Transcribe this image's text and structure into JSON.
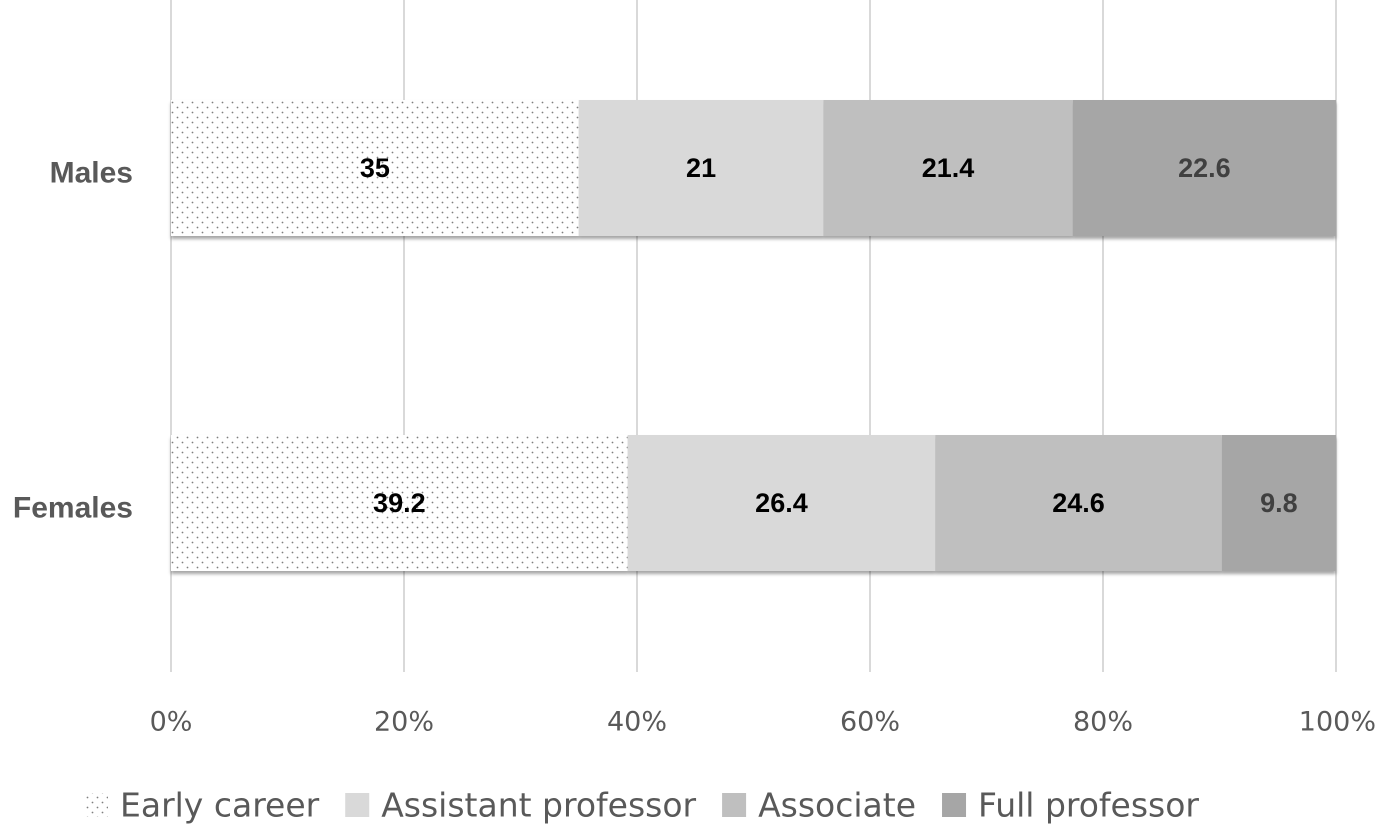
{
  "chart_data": {
    "type": "bar",
    "orientation": "horizontal",
    "stacking": "percent",
    "categories": [
      "Males",
      "Females"
    ],
    "series": [
      {
        "name": "Early career",
        "values": [
          35,
          39.2
        ],
        "color": "#ffffff",
        "pattern": "dotted",
        "label_color": "#000000"
      },
      {
        "name": "Assistant professor",
        "values": [
          21,
          26.4
        ],
        "color": "#d9d9d9",
        "label_color": "#000000"
      },
      {
        "name": "Associate",
        "values": [
          21.4,
          24.6
        ],
        "color": "#bfbfbf",
        "label_color": "#000000"
      },
      {
        "name": "Full professor",
        "values": [
          22.6,
          9.8
        ],
        "color": "#a6a6a6",
        "label_color": "#404040"
      }
    ],
    "data_labels": [
      [
        "35",
        "39.2"
      ],
      [
        "21",
        "26.4"
      ],
      [
        "21.4",
        "24.6"
      ],
      [
        "22.6",
        "9.8"
      ]
    ],
    "x_ticks": [
      "0%",
      "20%",
      "40%",
      "60%",
      "80%",
      "100%"
    ],
    "xlim": [
      0,
      100
    ],
    "title": "",
    "xlabel": "",
    "ylabel": "",
    "grid": "vertical",
    "legend_position": "bottom"
  }
}
